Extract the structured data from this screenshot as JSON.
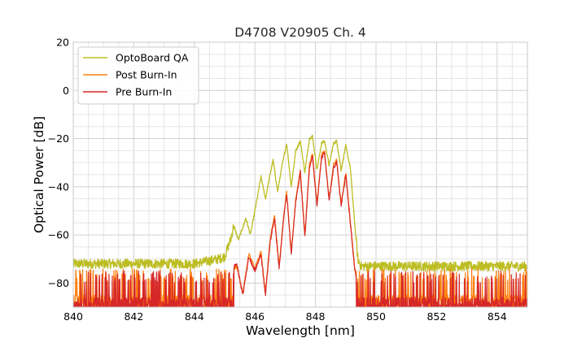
{
  "chart_data": {
    "type": "line",
    "title": "D4708 V20905 Ch. 4",
    "xlabel": "Wavelength [nm]",
    "ylabel": "Optical Power [dB]",
    "xlim": [
      840,
      855
    ],
    "ylim": [
      -90,
      20
    ],
    "xticks": [
      "840",
      "842",
      "844",
      "846",
      "848",
      "850",
      "852",
      "854"
    ],
    "yticks": [
      "20",
      "0",
      "−20",
      "−40",
      "−60",
      "−80"
    ],
    "grid": true,
    "legend_position": "top-left",
    "series": [
      {
        "name": "OptoBoard QA",
        "color": "#bcbd22",
        "noise_floor_db": -72,
        "points": [
          [
            840,
            -72
          ],
          [
            844,
            -72
          ],
          [
            844.8,
            -70
          ],
          [
            845.0,
            -69
          ],
          [
            845.2,
            -62
          ],
          [
            845.3,
            -56
          ],
          [
            845.45,
            -62
          ],
          [
            845.6,
            -57
          ],
          [
            845.7,
            -53
          ],
          [
            845.85,
            -60
          ],
          [
            846.0,
            -50
          ],
          [
            846.1,
            -43
          ],
          [
            846.2,
            -36
          ],
          [
            846.35,
            -45
          ],
          [
            846.5,
            -35
          ],
          [
            846.6,
            -29
          ],
          [
            846.75,
            -42
          ],
          [
            846.9,
            -31
          ],
          [
            847.05,
            -22
          ],
          [
            847.2,
            -40
          ],
          [
            847.35,
            -25
          ],
          [
            847.5,
            -21
          ],
          [
            847.65,
            -34
          ],
          [
            847.8,
            -20
          ],
          [
            847.9,
            -19
          ],
          [
            848.05,
            -33
          ],
          [
            848.2,
            -22
          ],
          [
            848.3,
            -21
          ],
          [
            848.45,
            -31
          ],
          [
            848.6,
            -22
          ],
          [
            848.7,
            -21
          ],
          [
            848.85,
            -33
          ],
          [
            849.0,
            -23
          ],
          [
            849.15,
            -32
          ],
          [
            849.3,
            -56
          ],
          [
            849.4,
            -70
          ],
          [
            849.5,
            -73
          ],
          [
            855,
            -73
          ]
        ]
      },
      {
        "name": "Post Burn-In",
        "color": "#ff7f0e",
        "noise_floor_db": -82,
        "points": [
          [
            840,
            -82
          ],
          [
            844,
            -79
          ],
          [
            845.0,
            -77
          ],
          [
            845.4,
            -73
          ],
          [
            845.6,
            -84
          ],
          [
            845.8,
            -68
          ],
          [
            846.0,
            -74
          ],
          [
            846.2,
            -67
          ],
          [
            846.35,
            -84
          ],
          [
            846.5,
            -62
          ],
          [
            846.65,
            -52
          ],
          [
            846.8,
            -73
          ],
          [
            846.95,
            -52
          ],
          [
            847.05,
            -42
          ],
          [
            847.2,
            -67
          ],
          [
            847.35,
            -45
          ],
          [
            847.5,
            -33
          ],
          [
            847.65,
            -60
          ],
          [
            847.8,
            -31
          ],
          [
            847.9,
            -26
          ],
          [
            848.05,
            -47
          ],
          [
            848.2,
            -27
          ],
          [
            848.3,
            -25
          ],
          [
            848.45,
            -45
          ],
          [
            848.6,
            -31
          ],
          [
            848.7,
            -29
          ],
          [
            848.85,
            -47
          ],
          [
            849.0,
            -34
          ],
          [
            849.15,
            -54
          ],
          [
            849.3,
            -74
          ],
          [
            849.45,
            -81
          ],
          [
            855,
            -83
          ]
        ]
      },
      {
        "name": "Pre Burn-In",
        "color": "#d62728",
        "noise_floor_db": -83,
        "points": [
          [
            840,
            -83
          ],
          [
            844,
            -80
          ],
          [
            845.0,
            -77
          ],
          [
            845.4,
            -72
          ],
          [
            845.6,
            -85
          ],
          [
            845.8,
            -69
          ],
          [
            846.0,
            -75
          ],
          [
            846.2,
            -68
          ],
          [
            846.35,
            -85
          ],
          [
            846.5,
            -63
          ],
          [
            846.65,
            -53
          ],
          [
            846.8,
            -74
          ],
          [
            846.95,
            -53
          ],
          [
            847.05,
            -43
          ],
          [
            847.2,
            -68
          ],
          [
            847.35,
            -46
          ],
          [
            847.5,
            -34
          ],
          [
            847.65,
            -61
          ],
          [
            847.8,
            -32
          ],
          [
            847.9,
            -27
          ],
          [
            848.05,
            -48
          ],
          [
            848.2,
            -28
          ],
          [
            848.3,
            -26
          ],
          [
            848.45,
            -46
          ],
          [
            848.6,
            -32
          ],
          [
            848.7,
            -30
          ],
          [
            848.85,
            -48
          ],
          [
            849.0,
            -35
          ],
          [
            849.15,
            -55
          ],
          [
            849.3,
            -75
          ],
          [
            849.45,
            -82
          ],
          [
            855,
            -84
          ]
        ]
      }
    ]
  }
}
